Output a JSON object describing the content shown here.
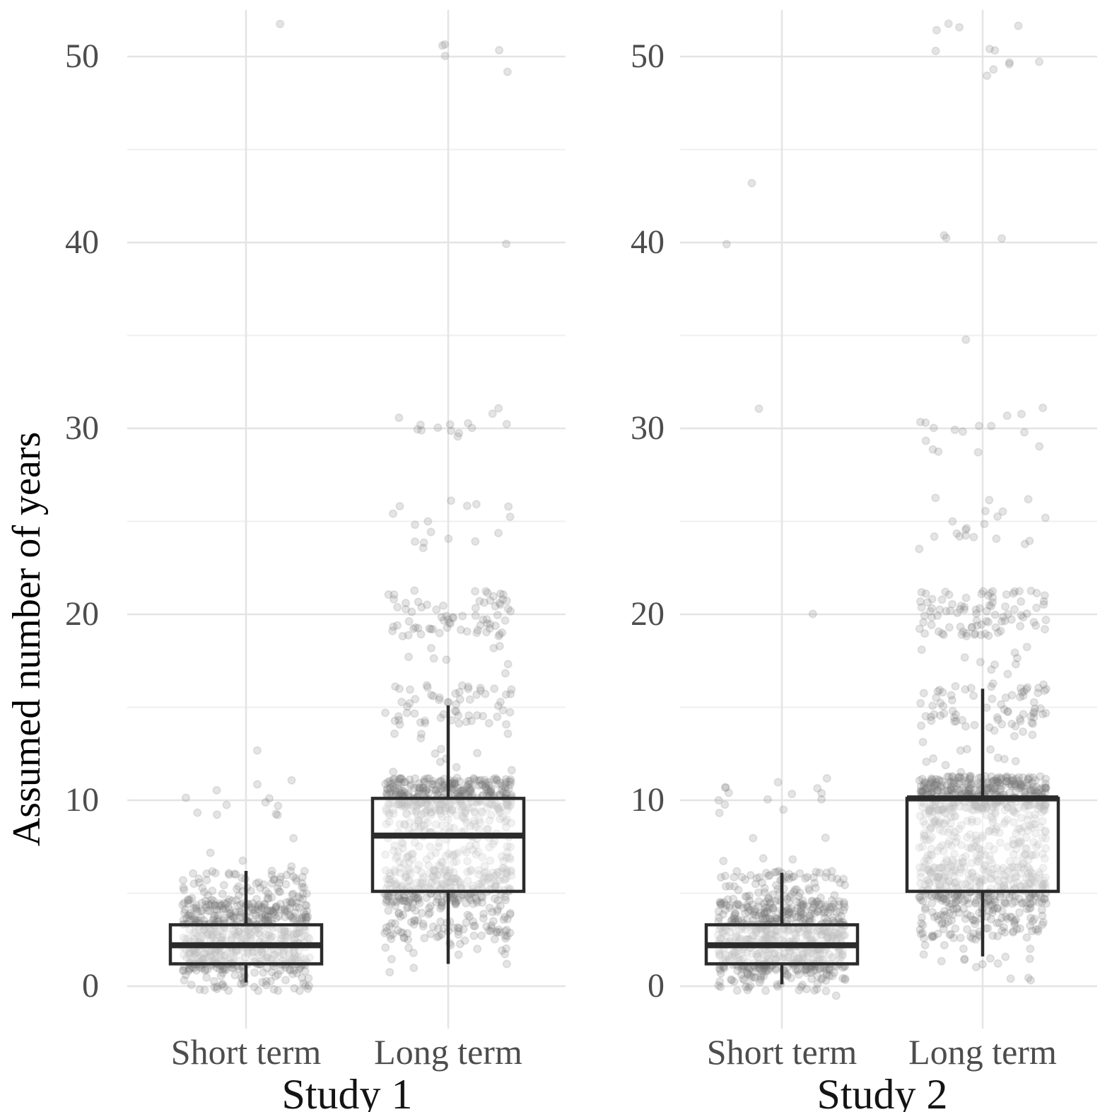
{
  "chart_data": {
    "type": "boxplot",
    "title": "",
    "xlabel": "",
    "ylabel": "Assumed number of years",
    "ylim": [
      -1.7,
      52.5
    ],
    "yticks": [
      0,
      10,
      20,
      30,
      40,
      50
    ],
    "yticks_minor": [
      5,
      15,
      25,
      35,
      45
    ],
    "grid": "on",
    "legend": "none",
    "point_style": "jittered light-gray translucent circles under semi-transparent white boxes",
    "panels": [
      {
        "title": "Study 1",
        "categories": [
          "Short term",
          "Long term"
        ],
        "boxes": [
          {
            "category": "Short term",
            "whisker_low": 0.2,
            "q1": 1.2,
            "median": 2.2,
            "q3": 3.3,
            "whisker_high": 6.2
          },
          {
            "category": "Long term",
            "whisker_low": 1.2,
            "q1": 5.1,
            "median": 8.1,
            "q3": 10.1,
            "whisker_high": 15.1
          }
        ],
        "jitter_clusters": [
          {
            "category": "Short term",
            "clusters": [
              [
                -0.3,
                6.2,
                310
              ],
              [
                0.8,
                4.6,
                380
              ],
              [
                6.4,
                7.3,
                3
              ],
              [
                7.95,
                8.05,
                1
              ],
              [
                9.1,
                11.2,
                12
              ],
              [
                12.6,
                12.7,
                1
              ],
              [
                51.7,
                51.9,
                1
              ]
            ]
          },
          {
            "category": "Long term",
            "clusters": [
              [
                0.4,
                1.2,
                3
              ],
              [
                1.2,
                2.5,
                14
              ],
              [
                2.5,
                4.4,
                95
              ],
              [
                4.4,
                6.4,
                235
              ],
              [
                6.4,
                9.3,
                135
              ],
              [
                9.3,
                11.2,
                330
              ],
              [
                11.5,
                13.6,
                12
              ],
              [
                13.9,
                16.2,
                60
              ],
              [
                16.5,
                18.6,
                8
              ],
              [
                18.8,
                21.3,
                72
              ],
              [
                23.5,
                26.3,
                16
              ],
              [
                28.8,
                31.2,
                14
              ],
              [
                39.9,
                40.1,
                1
              ],
              [
                49.0,
                51.0,
                5
              ]
            ]
          }
        ]
      },
      {
        "title": "Study 2",
        "categories": [
          "Short term",
          "Long term"
        ],
        "boxes": [
          {
            "category": "Short term",
            "whisker_low": 0.1,
            "q1": 1.2,
            "median": 2.2,
            "q3": 3.3,
            "whisker_high": 6.1
          },
          {
            "category": "Long term",
            "whisker_low": 1.6,
            "q1": 5.1,
            "median": 10.1,
            "q3": 10.1,
            "whisker_high": 16.0
          }
        ],
        "jitter_clusters": [
          {
            "category": "Short term",
            "clusters": [
              [
                -0.3,
                6.2,
                330
              ],
              [
                0.8,
                4.6,
                400
              ],
              [
                -0.6,
                -0.5,
                1
              ],
              [
                6.6,
                6.95,
                3
              ],
              [
                7.95,
                8.2,
                2
              ],
              [
                9.1,
                11.25,
                14
              ],
              [
                19.95,
                20.05,
                1
              ],
              [
                30.9,
                31.1,
                1
              ],
              [
                39.9,
                40.1,
                1
              ],
              [
                43.0,
                43.2,
                1
              ]
            ]
          },
          {
            "category": "Long term",
            "clusters": [
              [
                0.3,
                1.2,
                5
              ],
              [
                1.2,
                2.5,
                12
              ],
              [
                2.5,
                4.4,
                110
              ],
              [
                4.4,
                6.4,
                265
              ],
              [
                6.4,
                9.4,
                185
              ],
              [
                9.4,
                11.3,
                385
              ],
              [
                11.5,
                13.8,
                15
              ],
              [
                13.9,
                16.3,
                72
              ],
              [
                16.5,
                18.6,
                10
              ],
              [
                18.8,
                21.3,
                92
              ],
              [
                23.5,
                26.3,
                20
              ],
              [
                28.7,
                31.3,
                16
              ],
              [
                34.7,
                34.9,
                1
              ],
              [
                39.9,
                40.5,
                3
              ],
              [
                48.5,
                52.0,
                12
              ]
            ]
          }
        ]
      }
    ],
    "style": {
      "background": "#ffffff",
      "grid_major": "#e4e4e4",
      "grid_minor": "#efefef",
      "axis_tick": "#dddddd",
      "point_color": "#787878",
      "point_alpha": 0.2,
      "box_stroke": "#2b2b2b",
      "box_fill_alpha": 0.5,
      "label_gray": "#4d4d4d",
      "label_black": "#141414"
    }
  }
}
